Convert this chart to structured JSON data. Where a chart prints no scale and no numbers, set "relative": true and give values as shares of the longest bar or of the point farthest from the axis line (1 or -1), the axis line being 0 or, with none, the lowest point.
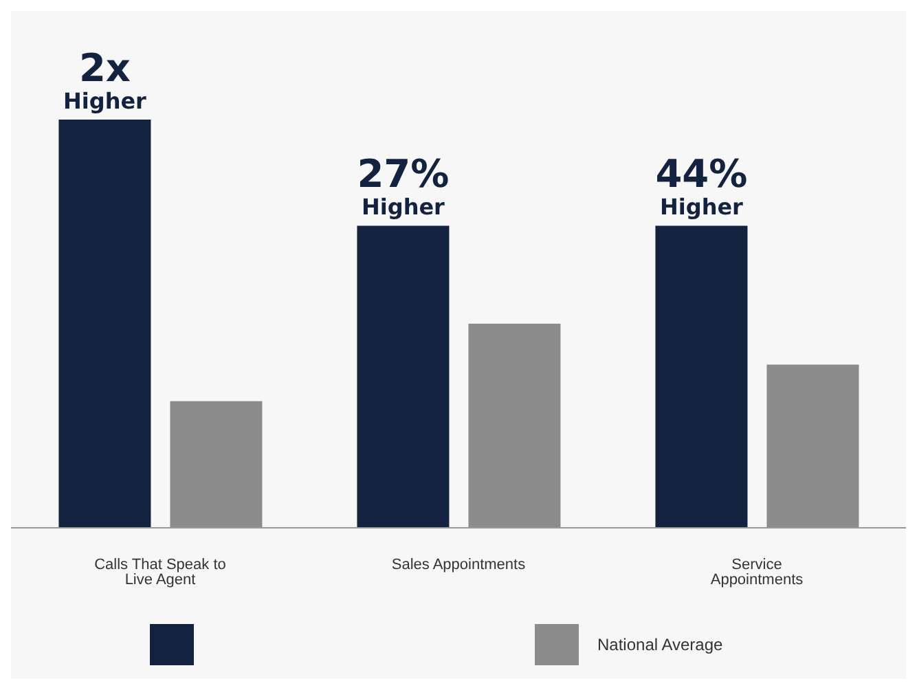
{
  "chart_data": {
    "type": "bar",
    "relative": true,
    "categories": [
      "Calls That Speak to Live Agent",
      "Sales Appointments",
      "Service Appointments"
    ],
    "series": [
      {
        "color": "#13233f",
        "values": [
          1,
          0.74,
          0.74
        ]
      },
      {
        "name": "National Average",
        "color": "#8c8c8c",
        "values": [
          0.31,
          0.5,
          0.4
        ]
      }
    ],
    "annotations": [
      "2x Higher",
      "27% Higher",
      "44% Higher"
    ],
    "legend": "bottom"
  }
}
